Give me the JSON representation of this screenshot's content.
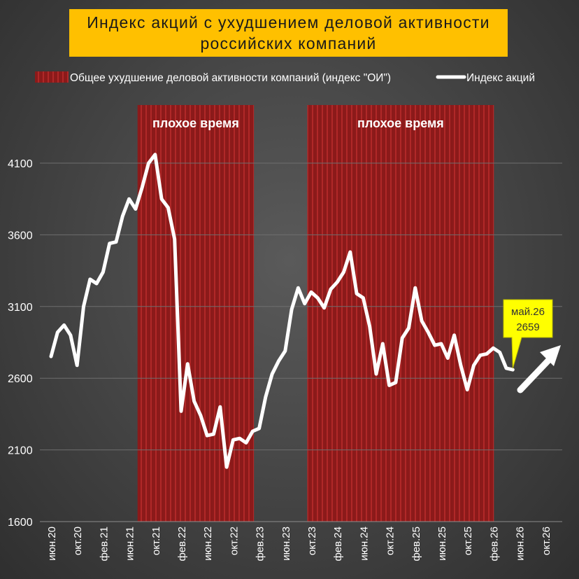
{
  "title_line1": "Индекс акций с ухудшением деловой активности",
  "title_line2": "российских компаний",
  "colors": {
    "band": "#8b1a1a",
    "line": "#ffffff",
    "title_bg": "#ffc000",
    "callout_bg": "#ffff00",
    "grid": "#6e6e6e"
  },
  "chart_data": {
    "type": "line",
    "legend": {
      "position": "top",
      "entries": [
        "Общее ухудшение деловой активности компаний (индекс \"ОИ\")",
        "Индекс акций"
      ]
    },
    "ylim": [
      1600,
      4100
    ],
    "yticks": [
      1600,
      2100,
      2600,
      3100,
      3600,
      4100
    ],
    "xticks": [
      "июн.20",
      "окт.20",
      "фев.21",
      "июн.21",
      "окт.21",
      "фев.22",
      "июн.22",
      "окт.22",
      "фев.23",
      "июн.23",
      "окт.23",
      "фев.24",
      "июн.24",
      "окт.24",
      "фев.25",
      "июн.25",
      "окт.25",
      "фев.26",
      "июн.26",
      "окт.26"
    ],
    "grid": true,
    "shaded_periods": [
      {
        "label": "плохое время",
        "start": 13.3,
        "end": 31.2
      },
      {
        "label": "плохое время",
        "start": 39.4,
        "end": 68.1
      }
    ],
    "series": [
      {
        "name": "Индекс акций",
        "x": [
          0,
          1,
          2,
          3,
          4,
          5,
          6,
          7,
          8,
          9,
          10,
          11,
          12,
          13,
          14,
          15,
          16,
          17,
          18,
          19,
          20,
          21,
          22,
          23,
          24,
          25,
          26,
          27,
          28,
          29,
          30,
          31,
          32,
          33,
          34,
          35,
          36,
          37,
          38,
          39,
          40,
          41,
          42,
          43,
          44,
          45,
          46,
          47,
          48,
          49,
          50,
          51,
          52,
          53,
          54,
          55,
          56,
          57,
          58,
          59,
          60,
          61,
          62,
          63,
          64,
          65,
          66,
          67,
          68,
          69,
          70,
          71
        ],
        "values": [
          2752,
          2920,
          2970,
          2900,
          2690,
          3100,
          3290,
          3260,
          3340,
          3540,
          3550,
          3730,
          3850,
          3780,
          3930,
          4100,
          4160,
          3850,
          3790,
          3570,
          2370,
          2700,
          2440,
          2340,
          2200,
          2210,
          2400,
          1980,
          2170,
          2180,
          2150,
          2230,
          2250,
          2470,
          2630,
          2720,
          2790,
          3080,
          3230,
          3120,
          3200,
          3160,
          3090,
          3220,
          3270,
          3340,
          3480,
          3190,
          3160,
          2960,
          2630,
          2840,
          2550,
          2570,
          2880,
          2950,
          3230,
          3000,
          2920,
          2830,
          2840,
          2740,
          2900,
          2690,
          2520,
          2690,
          2760,
          2770,
          2810,
          2780,
          2670,
          2659
        ]
      }
    ],
    "annotation": {
      "label": "май.26",
      "value_text": "2659",
      "x": 71,
      "y": 2659
    }
  }
}
